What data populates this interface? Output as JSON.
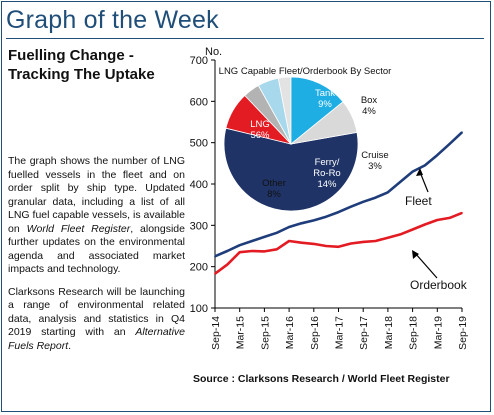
{
  "header": {
    "title": "Graph of the Week"
  },
  "article": {
    "headline_line1": "Fuelling Change -",
    "headline_line2": "Tracking The Uptake",
    "para1": "The graph shows the number of LNG fuelled vessels in the fleet and on order split by ship type. Updated granular data, including a list of all LNG fuel capable vessels, is available on ",
    "para1_em": "World Fleet Register",
    "para1_tail": ", alongside further updates on the environmental agenda and associated market impacts and technology.",
    "para2": "Clarksons Research will be launching a range of environmental related data, analysis and statistics in Q4 2019 starting with an ",
    "para2_em": "Alternative Fuels Report",
    "para2_tail": "."
  },
  "source": "Source : Clarksons Research / World Fleet Register",
  "chart_data": [
    {
      "type": "line",
      "ylabel": "No.",
      "ylim": [
        100,
        700
      ],
      "yticks": [
        100,
        200,
        300,
        400,
        500,
        600,
        700
      ],
      "xticks": [
        "Sep-14",
        "Mar-15",
        "Sep-15",
        "Mar-16",
        "Sep-16",
        "Mar-17",
        "Sep-17",
        "Mar-18",
        "Sep-18",
        "Mar-19",
        "Sep-19"
      ],
      "grid": false,
      "x": [
        "Sep-14",
        "Dec-14",
        "Mar-15",
        "Jun-15",
        "Sep-15",
        "Dec-15",
        "Mar-16",
        "Jun-16",
        "Sep-16",
        "Dec-16",
        "Mar-17",
        "Jun-17",
        "Sep-17",
        "Dec-17",
        "Mar-18",
        "Jun-18",
        "Sep-18",
        "Dec-18",
        "Mar-19",
        "Jun-19",
        "Sep-19"
      ],
      "series": [
        {
          "name": "Fleet",
          "color": "#1f3d7a",
          "values": [
            225,
            238,
            252,
            262,
            272,
            282,
            296,
            305,
            312,
            321,
            332,
            345,
            357,
            367,
            380,
            405,
            430,
            445,
            470,
            497,
            525
          ]
        },
        {
          "name": "Orderbook",
          "color": "#e31b23",
          "values": [
            183,
            205,
            235,
            238,
            237,
            242,
            262,
            258,
            255,
            250,
            248,
            256,
            260,
            262,
            270,
            278,
            290,
            302,
            313,
            318,
            330
          ]
        }
      ],
      "annotations": [
        "Fleet",
        "Orderbook"
      ]
    },
    {
      "type": "pie",
      "title": "LNG Capable Fleet/Orderbook By Sector",
      "slices": [
        {
          "label": "LNG",
          "value": 56,
          "display": "56%",
          "color": "#1f3366"
        },
        {
          "label": "Tank",
          "value": 9,
          "display": "9%",
          "color": "#e31b23"
        },
        {
          "label": "Box",
          "value": 4,
          "display": "4%",
          "color": "#b3b3b3"
        },
        {
          "label": "",
          "value": 5,
          "display": "",
          "color": "#a8d8ec"
        },
        {
          "label": "Cruise",
          "value": 3,
          "display": "3%",
          "color": "#e3e3e3"
        },
        {
          "label": "Ferry/ Ro-Ro",
          "value": 14,
          "display": "14%",
          "color": "#1eaee4"
        },
        {
          "label": "Other",
          "value": 8,
          "display": "8%",
          "color": "#d9d9d9"
        }
      ]
    }
  ]
}
